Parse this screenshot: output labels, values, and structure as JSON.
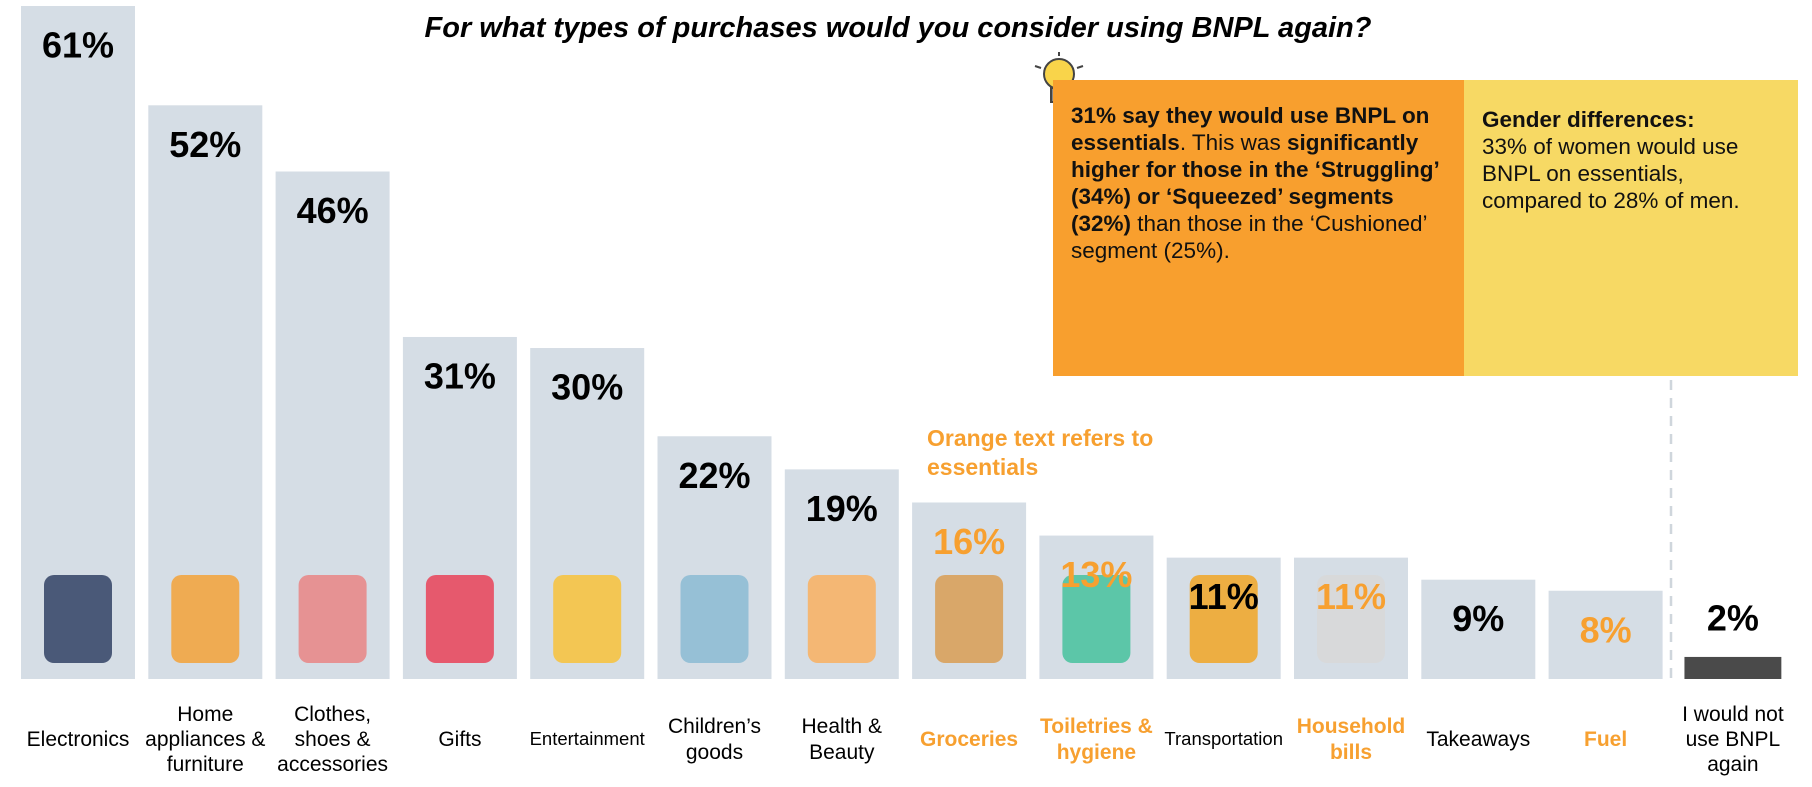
{
  "chart_data": {
    "type": "bar",
    "title": "For what types of purchases would you consider using BNPL again?",
    "categories": [
      "Electronics",
      "Home appliances & furniture",
      "Clothes, shoes & accessories",
      "Gifts",
      "Entertainment",
      "Children’s goods",
      "Health & Beauty",
      "Groceries",
      "Toiletries & hygiene",
      "Transportation",
      "Household bills",
      "Takeaways",
      "Fuel",
      "I would not use BNPL again"
    ],
    "values": [
      61,
      52,
      46,
      31,
      30,
      22,
      19,
      16,
      13,
      11,
      11,
      9,
      8,
      2
    ],
    "value_labels": [
      "61%",
      "52%",
      "46%",
      "31%",
      "30%",
      "22%",
      "19%",
      "16%",
      "13%",
      "11%",
      "11%",
      "9%",
      "8%",
      "2%"
    ],
    "bar_colors": [
      "#d5dde5",
      "#d5dde5",
      "#d5dde5",
      "#d5dde5",
      "#d5dde5",
      "#d5dde5",
      "#d5dde5",
      "#d5dde5",
      "#d5dde5",
      "#d5dde5",
      "#d5dde5",
      "#d5dde5",
      "#d5dde5",
      "#4a4a4a"
    ],
    "text_colors": [
      "#000000",
      "#000000",
      "#000000",
      "#000000",
      "#000000",
      "#000000",
      "#000000",
      "#f7a030",
      "#f7a030",
      "#000000",
      "#f7a030",
      "#000000",
      "#f7a030",
      "#000000"
    ],
    "essentials_note": "Orange text refers to essentials",
    "box_essentials": [
      "31% say they would use BNPL on essentials",
      ". This was ",
      "significantly higher for those in the ‘Struggling’ (34%) or ‘Squeezed’ segments (32%)",
      " than those in the ‘Cushioned’ segment (25%)."
    ],
    "box_gender": [
      "Gender differences:",
      "33% of women would use BNPL on essentials, compared to 28% of men."
    ]
  }
}
